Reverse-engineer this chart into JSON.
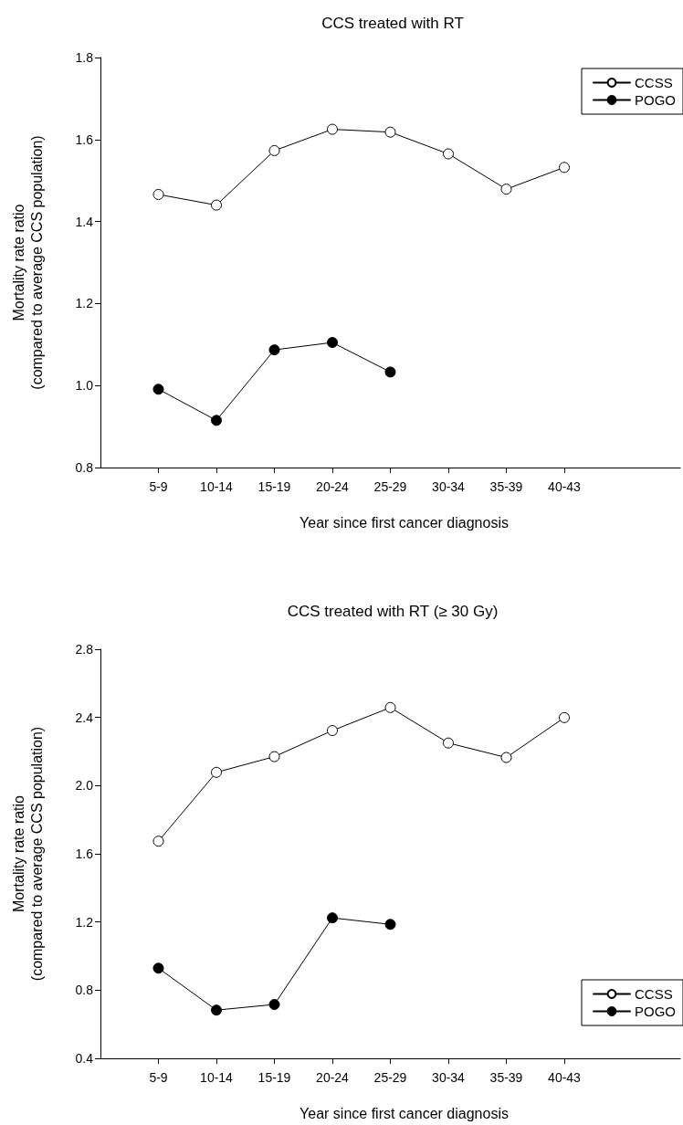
{
  "chart_data": [
    {
      "type": "line",
      "title": "CCS treated with RT",
      "xlabel": "Year since first cancer diagnosis",
      "ylabel": "Mortality rate ratio\n(compared to average CCS population)",
      "categories": [
        "5-9",
        "10-14",
        "15-19",
        "20-24",
        "25-29",
        "30-34",
        "35-39",
        "40-43"
      ],
      "series": [
        {
          "name": "CCSS",
          "color": "#ffffff",
          "values": [
            1.466,
            1.44,
            1.573,
            1.625,
            1.618,
            1.565,
            1.479,
            1.532
          ]
        },
        {
          "name": "POGO",
          "color": "#000000",
          "values": [
            0.991,
            0.915,
            1.087,
            1.105,
            1.033,
            null,
            null,
            null
          ]
        }
      ],
      "ylim": [
        0.8,
        1.8
      ],
      "yticks": [
        0.8,
        {
          "value": 1,
          "label": "1.0"
        },
        1.2,
        1.4,
        1.6,
        1.8
      ],
      "grid": false,
      "legend": "top right",
      "marker": "circle",
      "line_style": "solid"
    },
    {
      "type": "line",
      "title": "CCS treated with RT (≥ 30 Gy)",
      "xlabel": "Year since first cancer diagnosis",
      "ylabel": "Mortality rate ratio\n(compared to average CCS population)",
      "categories": [
        "5-9",
        "10-14",
        "15-19",
        "20-24",
        "25-29",
        "30-34",
        "35-39",
        "40-43"
      ],
      "series": [
        {
          "name": "CCSS",
          "color": "#ffffff",
          "values": [
            1.674,
            2.078,
            2.17,
            2.323,
            2.458,
            2.25,
            2.165,
            2.399
          ]
        },
        {
          "name": "POGO",
          "color": "#000000",
          "values": [
            0.929,
            0.683,
            0.716,
            1.224,
            1.186,
            null,
            null,
            null
          ]
        }
      ],
      "ylim": [
        0.4,
        2.8
      ],
      "yticks": [
        0.4,
        0.8,
        1.2,
        1.6,
        {
          "value": 2,
          "label": "2.0"
        },
        2.4,
        2.8
      ],
      "grid": false,
      "legend": "bottom right",
      "marker": "circle",
      "line_style": "solid"
    }
  ]
}
